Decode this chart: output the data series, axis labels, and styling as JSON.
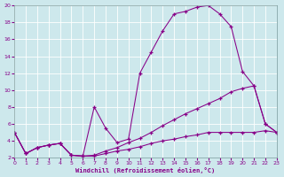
{
  "xlabel": "Windchill (Refroidissement éolien,°C)",
  "bg_color": "#cde8ec",
  "line_color": "#880088",
  "xlim": [
    0,
    23
  ],
  "ylim": [
    2,
    20
  ],
  "xticks": [
    0,
    1,
    2,
    3,
    4,
    5,
    6,
    7,
    8,
    9,
    10,
    11,
    12,
    13,
    14,
    15,
    16,
    17,
    18,
    19,
    20,
    21,
    22,
    23
  ],
  "yticks": [
    2,
    4,
    6,
    8,
    10,
    12,
    14,
    16,
    18,
    20
  ],
  "curve1_x": [
    0,
    1,
    2,
    3,
    4,
    5,
    6,
    7,
    8,
    9,
    10,
    11,
    12,
    13,
    14,
    15,
    16,
    17,
    18,
    19,
    20,
    21,
    22,
    23
  ],
  "curve1_y": [
    5.0,
    2.5,
    3.2,
    3.5,
    3.7,
    2.3,
    2.2,
    8.0,
    5.5,
    3.8,
    4.2,
    12.0,
    14.5,
    17.0,
    19.0,
    19.3,
    19.8,
    20.0,
    19.0,
    17.5,
    12.2,
    10.5,
    6.0,
    5.0
  ],
  "curve2_x": [
    0,
    1,
    2,
    3,
    4,
    5,
    6,
    7,
    8,
    9,
    10,
    11,
    12,
    13,
    14,
    15,
    16,
    17,
    18,
    19,
    20,
    21,
    22,
    23
  ],
  "curve2_y": [
    5.0,
    2.5,
    3.2,
    3.5,
    3.7,
    2.3,
    2.2,
    2.3,
    2.8,
    3.2,
    3.8,
    4.3,
    5.0,
    5.8,
    6.5,
    7.2,
    7.8,
    8.4,
    9.0,
    9.8,
    10.2,
    10.5,
    6.0,
    5.0
  ],
  "curve3_x": [
    0,
    1,
    2,
    3,
    4,
    5,
    6,
    7,
    8,
    9,
    10,
    11,
    12,
    13,
    14,
    15,
    16,
    17,
    18,
    19,
    20,
    21,
    22,
    23
  ],
  "curve3_y": [
    5.0,
    2.5,
    3.2,
    3.5,
    3.7,
    2.3,
    2.2,
    2.2,
    2.5,
    2.8,
    3.0,
    3.3,
    3.7,
    4.0,
    4.2,
    4.5,
    4.7,
    5.0,
    5.0,
    5.0,
    5.0,
    5.0,
    5.2,
    5.0
  ]
}
